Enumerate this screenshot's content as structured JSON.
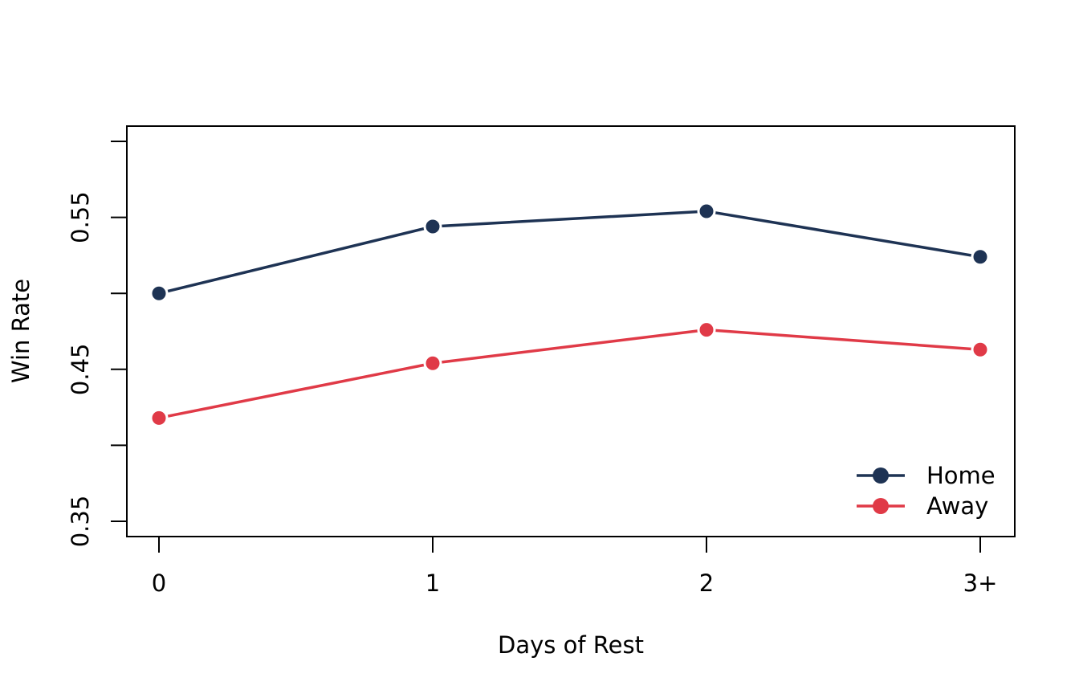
{
  "chart_data": {
    "type": "line",
    "title": "",
    "xlabel": "Days of Rest",
    "ylabel": "Win Rate",
    "categories": [
      "0",
      "1",
      "2",
      "3+"
    ],
    "ylim": [
      0.35,
      0.6
    ],
    "yticks": [
      0.35,
      0.4,
      0.45,
      0.5,
      0.55,
      0.6
    ],
    "ytick_labels": [
      "0.35",
      "",
      "0.45",
      "",
      "0.55",
      ""
    ],
    "grid": false,
    "legend_position": "bottom-right",
    "series": [
      {
        "name": "Home",
        "color": "#1e3354",
        "values": [
          0.5,
          0.544,
          0.554,
          0.524
        ]
      },
      {
        "name": "Away",
        "color": "#e03a47",
        "values": [
          0.418,
          0.454,
          0.476,
          0.463
        ]
      }
    ]
  }
}
